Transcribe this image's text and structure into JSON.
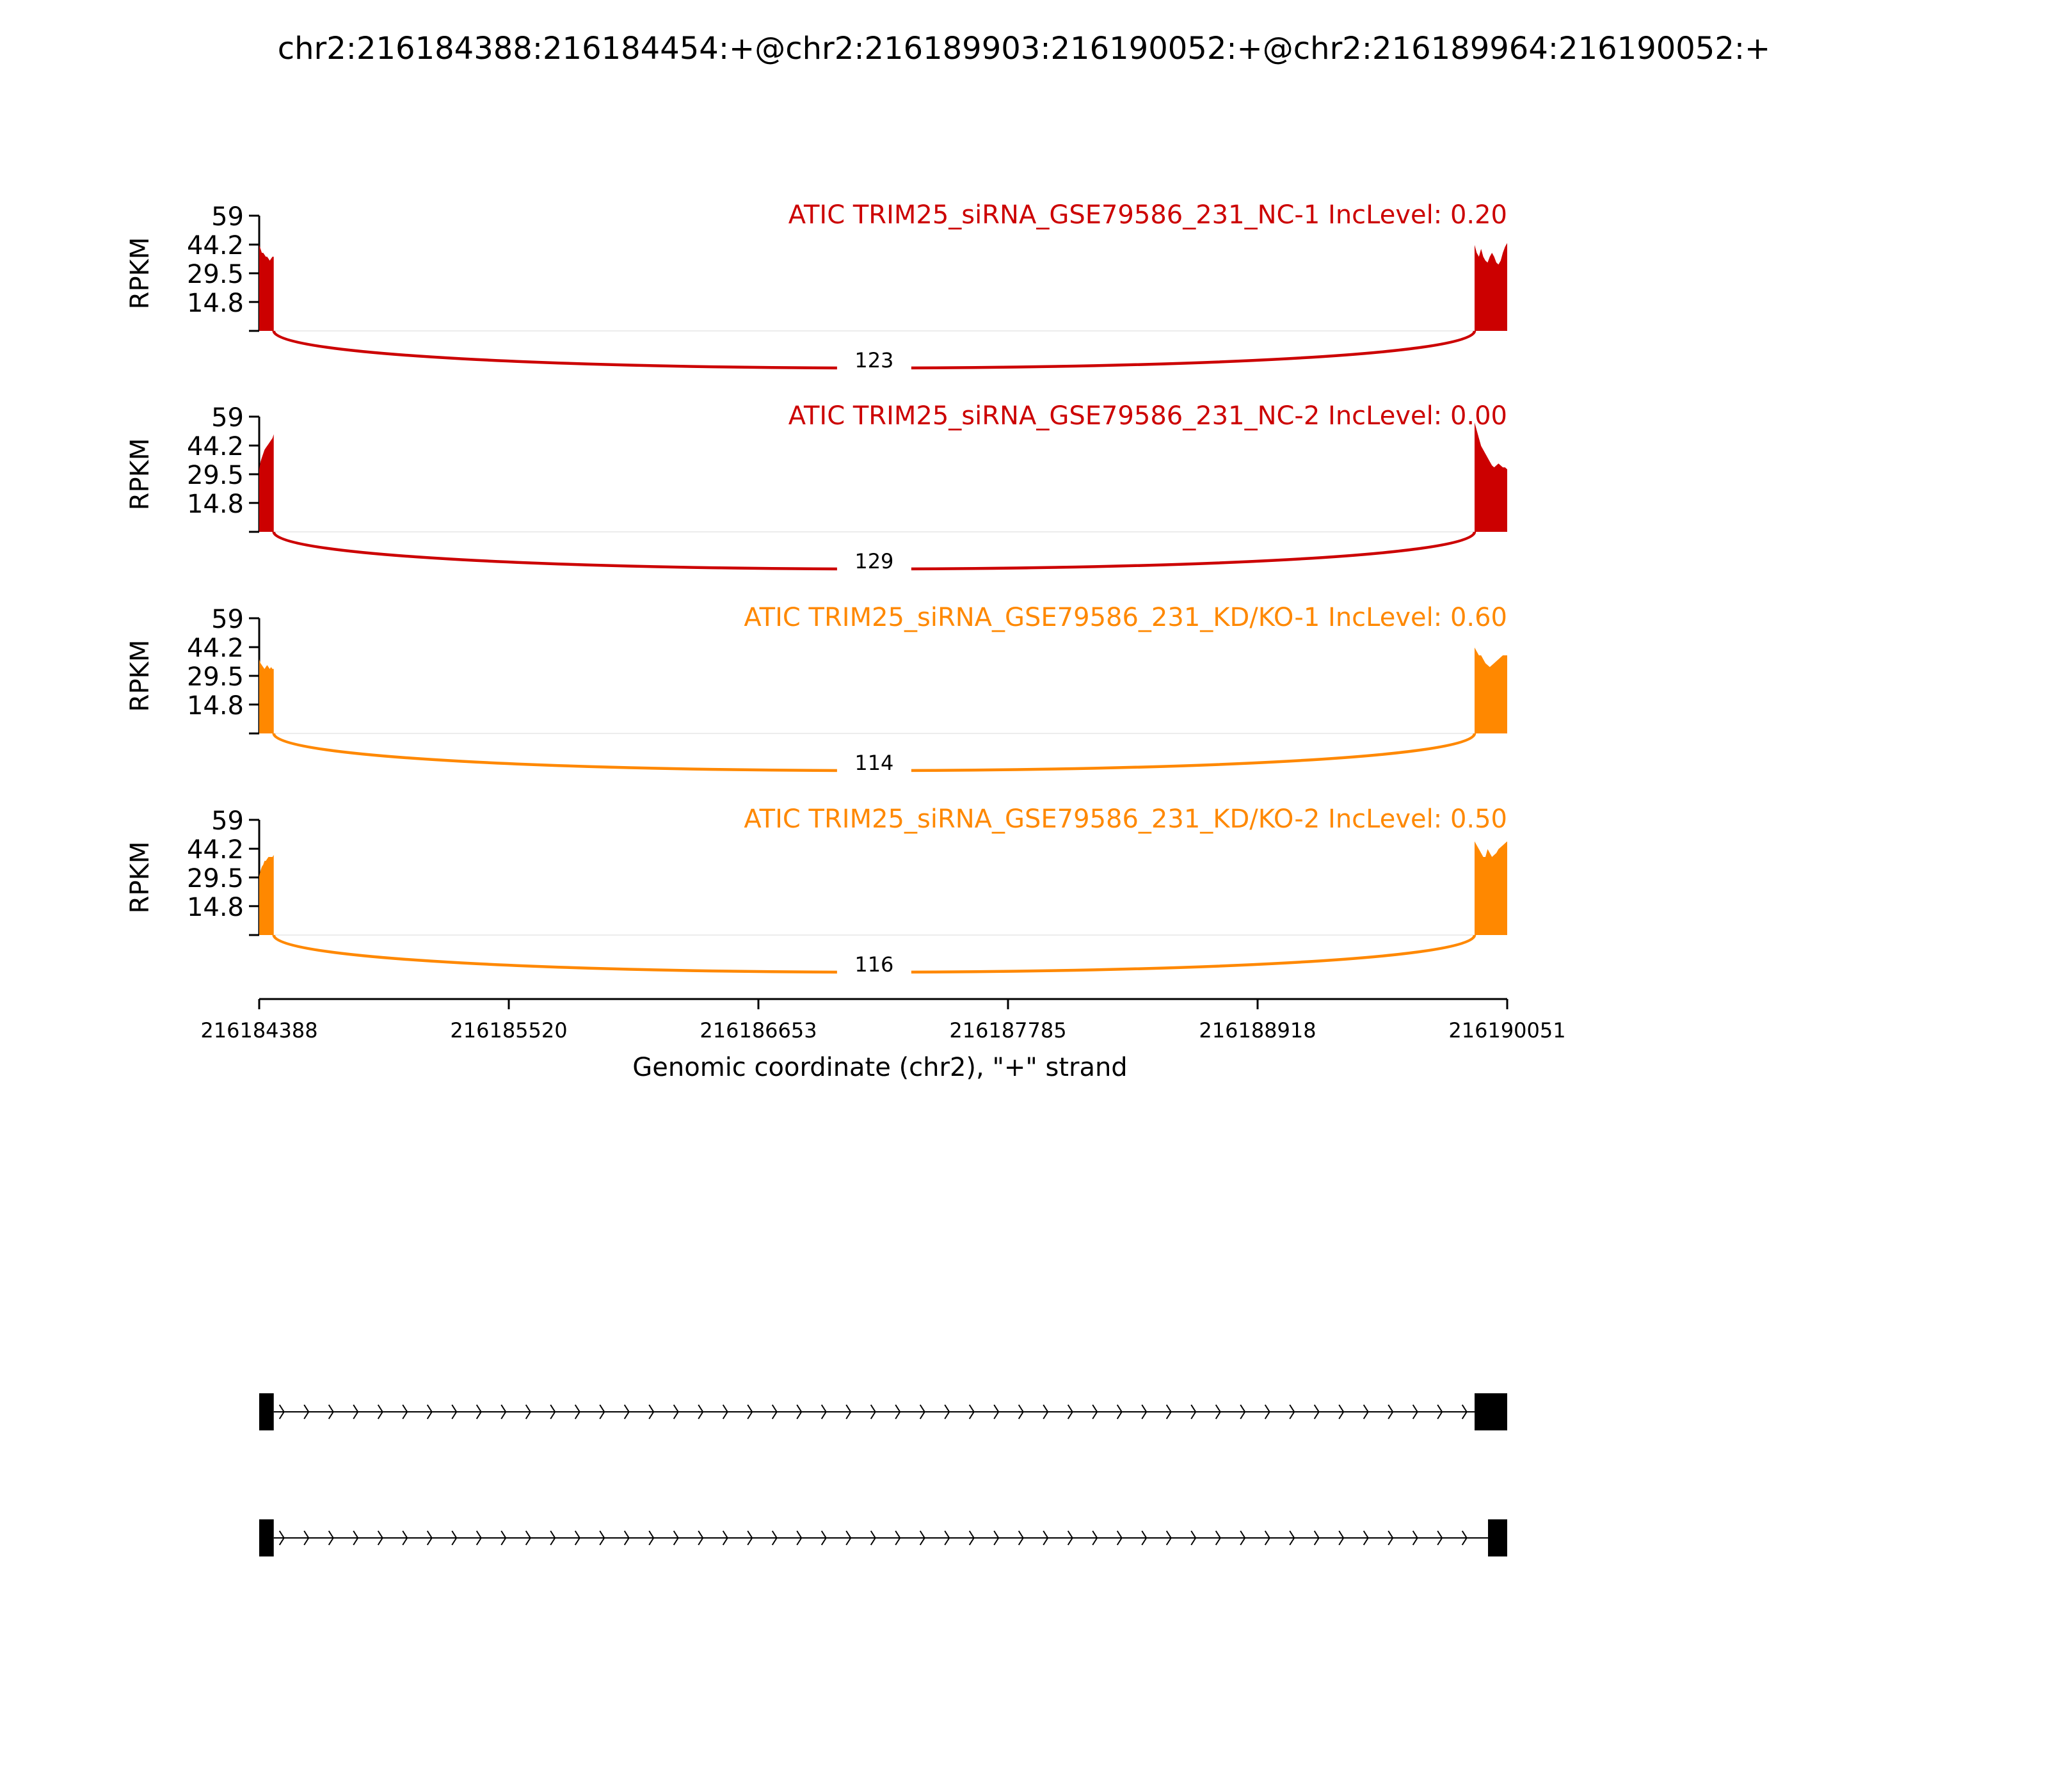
{
  "title": "chr2:216184388:216184454:+@chr2:216189903:216190052:+@chr2:216189964:216190052:+",
  "chart_data": {
    "type": "area",
    "title": "chr2:216184388:216184454:+@chr2:216189903:216190052:+@chr2:216189964:216190052:+",
    "xlabel": "Genomic coordinate (chr2), \"+\" strand",
    "ylabel": "RPKM",
    "x_ticks": [
      "216184388",
      "216185520",
      "216186653",
      "216187785",
      "216188918",
      "216190051"
    ],
    "xlim": [
      216184388,
      216190051
    ],
    "ylim": [
      0,
      59
    ],
    "y_ticks": [
      "59",
      "44.2",
      "29.5",
      "14.8"
    ],
    "grid": false,
    "tracks": [
      {
        "label": "ATIC TRIM25_siRNA_GSE79586_231_NC-1 IncLevel: 0.20",
        "color": "#cc0000",
        "junction_count": "123",
        "left_exon": {
          "start": 216184388,
          "end": 216184454,
          "profile": [
            44,
            42,
            40,
            40,
            39,
            38,
            38,
            37,
            36,
            37,
            38,
            38
          ]
        },
        "right_exon": {
          "start": 216189903,
          "end": 216190052,
          "profile": [
            44,
            40,
            38,
            42,
            38,
            36,
            35,
            38,
            40,
            38,
            35,
            34,
            36,
            40,
            43,
            45
          ]
        }
      },
      {
        "label": "ATIC TRIM25_siRNA_GSE79586_231_NC-2 IncLevel: 0.00",
        "color": "#cc0000",
        "junction_count": "129",
        "left_exon": {
          "start": 216184388,
          "end": 216184454,
          "profile": [
            32,
            36,
            38,
            40,
            42,
            43,
            44,
            45,
            46,
            47,
            48,
            50
          ]
        },
        "right_exon": {
          "start": 216189903,
          "end": 216190052,
          "profile": [
            56,
            52,
            48,
            44,
            42,
            40,
            38,
            36,
            34,
            33,
            34,
            35,
            34,
            33,
            33,
            32
          ]
        }
      },
      {
        "label": "ATIC TRIM25_siRNA_GSE79586_231_KD/KO-1 IncLevel: 0.60",
        "color": "#ff8800",
        "junction_count": "114",
        "left_exon": {
          "start": 216184388,
          "end": 216184454,
          "profile": [
            38,
            36,
            35,
            34,
            33,
            34,
            35,
            34,
            33,
            34,
            33,
            33
          ]
        },
        "right_exon": {
          "start": 216189903,
          "end": 216190052,
          "profile": [
            44,
            42,
            40,
            40,
            38,
            36,
            35,
            34,
            35,
            36,
            37,
            38,
            39,
            40,
            40,
            40
          ]
        }
      },
      {
        "label": "ATIC TRIM25_siRNA_GSE79586_231_KD/KO-2 IncLevel: 0.50",
        "color": "#ff8800",
        "junction_count": "116",
        "left_exon": {
          "start": 216184388,
          "end": 216184454,
          "profile": [
            30,
            33,
            35,
            36,
            38,
            38,
            39,
            40,
            40,
            40,
            40,
            41
          ]
        },
        "right_exon": {
          "start": 216189903,
          "end": 216190052,
          "profile": [
            48,
            46,
            44,
            42,
            40,
            40,
            44,
            42,
            40,
            41,
            42,
            44,
            45,
            46,
            47,
            48
          ]
        }
      }
    ],
    "isoforms": [
      {
        "exons": [
          [
            216184388,
            216184454
          ],
          [
            216189903,
            216190052
          ]
        ]
      },
      {
        "exons": [
          [
            216184388,
            216184454
          ],
          [
            216189964,
            216190052
          ]
        ]
      }
    ]
  }
}
